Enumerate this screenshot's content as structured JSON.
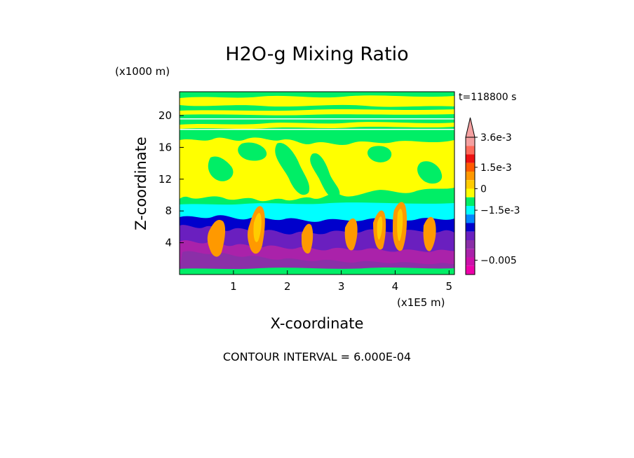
{
  "chart_data": {
    "type": "heatmap",
    "title": "H2O-g Mixing Ratio",
    "xlabel": "X-coordinate",
    "ylabel": "Z-coordinate",
    "x_units": "(x1E5 m)",
    "y_units": "(x1000 m)",
    "time_label": "t=118800 s",
    "footer": "CONTOUR INTERVAL = 6.000E-04",
    "x_ticks": [
      "1",
      "2",
      "3",
      "4",
      "5"
    ],
    "x_tick_values": [
      1,
      2,
      3,
      4,
      5
    ],
    "y_ticks": [
      "4",
      "8",
      "12",
      "16",
      "20"
    ],
    "y_tick_values": [
      4,
      8,
      12,
      16,
      20
    ],
    "xlim": [
      0,
      5.1
    ],
    "ylim": [
      0,
      23
    ],
    "colorbar": {
      "labels": [
        "3.6e-3",
        "1.5e-3",
        "0",
        "−1.5e-3",
        "−0.005"
      ],
      "label_values": [
        0.0036,
        0.0015,
        0,
        -0.0015,
        -0.005
      ],
      "levels": [
        0.0036,
        0.003,
        0.0024,
        0.0018,
        0.0012,
        0.0006,
        0,
        -0.0006,
        -0.0012,
        -0.0018,
        -0.0024,
        -0.003,
        -0.0036,
        -0.0042,
        -0.0048,
        -0.0054,
        -0.006
      ],
      "colors": [
        "#f4a0a0",
        "#ff6a5a",
        "#ee1111",
        "#ff5a00",
        "#ff9900",
        "#ffcc00",
        "#ffff00",
        "#00ee66",
        "#00ffff",
        "#0088ff",
        "#0000cc",
        "#6a1fbf",
        "#8b2fa8",
        "#aa22aa",
        "#cc11aa",
        "#ee00aa"
      ]
    },
    "bands": [
      {
        "z_range": [
          22.3,
          23.0
        ],
        "level": "green"
      },
      {
        "z_range": [
          21.2,
          22.3
        ],
        "level": "yellow"
      },
      {
        "z_range": [
          19.2,
          21.0
        ],
        "level": "green"
      },
      {
        "z_range": [
          16.5,
          19.0
        ],
        "level": "yellow"
      },
      {
        "z_range": [
          9.0,
          16.5
        ],
        "level": "yellow-green mix"
      },
      {
        "z_range": [
          7.0,
          9.0
        ],
        "level": "cyan"
      },
      {
        "z_range": [
          5.5,
          7.0
        ],
        "level": "blue"
      },
      {
        "z_range": [
          0.5,
          5.5
        ],
        "level": "purple-magenta with orange plumes"
      },
      {
        "z_range": [
          0.0,
          0.5
        ],
        "level": "green"
      }
    ]
  }
}
